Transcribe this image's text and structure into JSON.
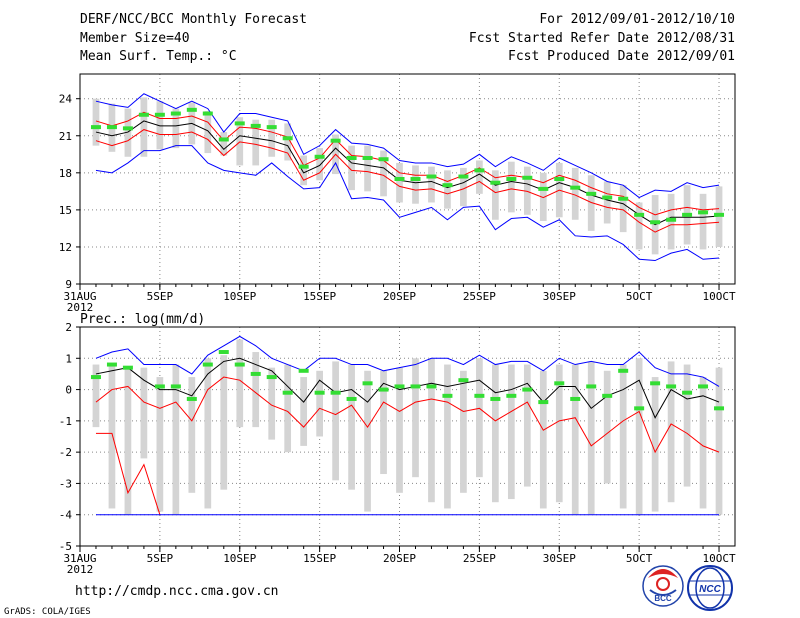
{
  "header": {
    "title": "DERF/NCC/BCC Monthly Forecast",
    "member_size": "Member Size=40",
    "var_temp": "Mean Surf. Temp.: °C",
    "for_range": "For 2012/09/01-2012/10/10",
    "fcst_started": "Fcst Started Refer Date 2012/08/31",
    "fcst_produced": "Fcst Produced Date 2012/09/01"
  },
  "footer": {
    "url": "http://cmdp.ncc.cma.gov.cn",
    "grads": "GrADS: COLA/IGES",
    "logo_bcc": "BCC",
    "logo_ncc": "NCC"
  },
  "colors": {
    "bar": "#d4d4d4",
    "mean": "#000000",
    "upper": "#ff0000",
    "lower_red": "#ff0000",
    "envelope": "#0000ff",
    "obs": "#33dd33",
    "grid": "#888888"
  },
  "chart_data": [
    {
      "type": "line",
      "id": "temperature",
      "title": "Mean Surf. Temp.: °C",
      "ylim": [
        9,
        26
      ],
      "yticks": [
        9,
        12,
        15,
        18,
        21,
        24
      ],
      "x_tick_labels": [
        "31AUG",
        "5SEP",
        "10SEP",
        "15SEP",
        "20SEP",
        "25SEP",
        "30SEP",
        "5OCT",
        "10OCT"
      ],
      "x_year_label": "2012",
      "x_tick_days": [
        0,
        5,
        10,
        15,
        20,
        25,
        30,
        35,
        40
      ],
      "days": [
        1,
        2,
        3,
        4,
        5,
        6,
        7,
        8,
        9,
        10,
        11,
        12,
        13,
        14,
        15,
        16,
        17,
        18,
        19,
        20,
        21,
        22,
        23,
        24,
        25,
        26,
        27,
        28,
        29,
        30,
        31,
        32,
        33,
        34,
        35,
        36,
        37,
        38,
        39,
        40
      ],
      "series": [
        {
          "name": "max",
          "values": [
            23.8,
            23.5,
            23.3,
            24.4,
            23.8,
            23.2,
            23.8,
            23.2,
            21.3,
            22.8,
            22.8,
            22.5,
            22.2,
            19.5,
            20.2,
            21.5,
            20.4,
            20.3,
            20.0,
            19.0,
            18.8,
            18.8,
            18.5,
            18.7,
            19.5,
            18.5,
            19.3,
            18.8,
            18.2,
            19.2,
            18.6,
            18.0,
            17.3,
            17.0,
            16.0,
            16.6,
            16.5,
            17.2,
            16.8,
            17.0
          ]
        },
        {
          "name": "upper",
          "values": [
            22.2,
            21.8,
            22.2,
            22.9,
            22.4,
            22.4,
            22.6,
            22.1,
            20.6,
            21.7,
            21.6,
            21.3,
            20.9,
            18.6,
            19.2,
            20.7,
            19.4,
            19.3,
            19.0,
            18.0,
            17.8,
            17.8,
            17.3,
            17.8,
            18.4,
            17.6,
            17.8,
            17.6,
            17.2,
            17.8,
            17.4,
            16.8,
            16.3,
            16.1,
            15.2,
            14.6,
            15.0,
            15.2,
            15.0,
            15.1
          ]
        },
        {
          "name": "mean",
          "values": [
            21.3,
            21.0,
            21.3,
            22.2,
            21.8,
            21.8,
            22.0,
            21.4,
            19.9,
            21.0,
            20.8,
            20.6,
            20.2,
            18.0,
            18.6,
            20.0,
            18.8,
            18.6,
            18.4,
            17.4,
            17.2,
            17.3,
            16.8,
            17.2,
            17.9,
            17.0,
            17.3,
            17.1,
            16.6,
            17.2,
            16.8,
            16.2,
            15.8,
            15.5,
            14.6,
            13.8,
            14.4,
            14.4,
            14.4,
            14.5
          ]
        },
        {
          "name": "lower",
          "values": [
            20.6,
            20.2,
            20.6,
            21.5,
            21.1,
            21.1,
            21.3,
            20.7,
            19.4,
            20.5,
            20.3,
            20.0,
            19.6,
            17.4,
            18.0,
            19.5,
            18.2,
            18.1,
            17.8,
            16.9,
            16.6,
            16.7,
            16.3,
            16.7,
            17.3,
            16.4,
            16.7,
            16.5,
            16.0,
            16.6,
            16.2,
            15.6,
            15.2,
            15.0,
            14.0,
            13.2,
            13.8,
            13.8,
            13.9,
            14.0
          ]
        },
        {
          "name": "min",
          "values": [
            18.2,
            18.0,
            18.8,
            19.8,
            19.8,
            20.2,
            20.2,
            18.8,
            18.2,
            18.0,
            17.8,
            18.8,
            17.7,
            16.7,
            16.8,
            18.8,
            15.9,
            16.0,
            15.8,
            14.4,
            14.8,
            15.2,
            14.2,
            15.2,
            15.3,
            13.4,
            14.3,
            14.4,
            13.6,
            14.2,
            12.9,
            12.8,
            12.9,
            12.2,
            11.0,
            10.9,
            11.5,
            11.8,
            11.0,
            11.1
          ]
        }
      ],
      "bars": {
        "name": "ensemble spread",
        "low": [
          20.2,
          19.7,
          19.3,
          19.3,
          19.9,
          20.0,
          20.3,
          19.6,
          19.4,
          18.6,
          18.6,
          19.3,
          19.0,
          17.0,
          17.4,
          17.9,
          16.6,
          16.5,
          16.1,
          15.6,
          15.5,
          15.6,
          15.1,
          15.3,
          16.3,
          14.2,
          14.8,
          14.6,
          14.1,
          14.4,
          14.2,
          13.3,
          13.9,
          13.2,
          11.8,
          11.4,
          11.8,
          12.2,
          11.8,
          12.0
        ],
        "high": [
          24.0,
          23.6,
          23.2,
          24.1,
          23.8,
          23.2,
          23.7,
          23.0,
          21.3,
          22.5,
          22.3,
          22.3,
          22.0,
          19.4,
          20.0,
          21.1,
          20.2,
          20.2,
          19.8,
          18.8,
          18.6,
          18.5,
          18.2,
          18.4,
          19.0,
          18.2,
          18.9,
          18.5,
          18.0,
          18.8,
          18.4,
          17.8,
          17.3,
          17.0,
          15.6,
          16.2,
          16.3,
          17.0,
          16.3,
          16.9
        ]
      },
      "obs": {
        "name": "observation",
        "values": [
          21.7,
          21.7,
          21.6,
          22.7,
          22.7,
          22.8,
          23.1,
          22.8,
          20.7,
          22.0,
          21.8,
          21.7,
          20.8,
          18.5,
          19.3,
          20.6,
          19.2,
          19.2,
          19.1,
          17.5,
          17.5,
          17.7,
          17.0,
          17.7,
          18.2,
          17.2,
          17.5,
          17.6,
          16.7,
          17.5,
          16.8,
          16.3,
          16.0,
          15.9,
          14.6,
          14.0,
          14.2,
          14.6,
          14.8,
          14.6
        ]
      }
    },
    {
      "type": "line",
      "id": "precipitation",
      "title": "Prec.: log(mm/d)",
      "ylim": [
        -5,
        2
      ],
      "yticks": [
        -5,
        -4,
        -3,
        -2,
        -1,
        0,
        1,
        2
      ],
      "x_tick_labels": [
        "31AUG",
        "5SEP",
        "10SEP",
        "15SEP",
        "20SEP",
        "25SEP",
        "30SEP",
        "5OCT",
        "10OCT"
      ],
      "x_year_label": "2012",
      "x_tick_days": [
        0,
        5,
        10,
        15,
        20,
        25,
        30,
        35,
        40
      ],
      "days": [
        1,
        2,
        3,
        4,
        5,
        6,
        7,
        8,
        9,
        10,
        11,
        12,
        13,
        14,
        15,
        16,
        17,
        18,
        19,
        20,
        21,
        22,
        23,
        24,
        25,
        26,
        27,
        28,
        29,
        30,
        31,
        32,
        33,
        34,
        35,
        36,
        37,
        38,
        39,
        40
      ],
      "series": [
        {
          "name": "max",
          "values": [
            1.0,
            1.2,
            1.3,
            0.8,
            0.8,
            0.8,
            0.5,
            1.1,
            1.4,
            1.7,
            1.4,
            1.0,
            0.8,
            0.6,
            1.0,
            1.0,
            0.8,
            0.8,
            0.6,
            0.7,
            0.8,
            1.0,
            1.0,
            0.8,
            1.1,
            0.8,
            0.9,
            0.9,
            0.6,
            1.0,
            0.8,
            0.9,
            0.8,
            0.8,
            1.2,
            0.7,
            0.5,
            0.5,
            0.4,
            0.1
          ]
        },
        {
          "name": "mean",
          "values": [
            0.5,
            0.6,
            0.7,
            0.3,
            0.0,
            0.0,
            -0.2,
            0.5,
            0.9,
            1.0,
            0.8,
            0.6,
            0.1,
            -0.4,
            0.3,
            -0.1,
            0.0,
            -0.4,
            0.2,
            0.0,
            0.1,
            0.2,
            0.1,
            0.2,
            0.3,
            -0.1,
            0.0,
            0.2,
            -0.4,
            0.1,
            0.1,
            -0.6,
            -0.2,
            0.0,
            0.3,
            -0.9,
            0.0,
            -0.3,
            -0.2,
            -0.4
          ]
        },
        {
          "name": "upper",
          "values": [
            -0.4,
            0.0,
            0.1,
            -0.4,
            -0.6,
            -0.4,
            -1.0,
            0.0,
            0.4,
            0.3,
            -0.1,
            -0.5,
            -0.7,
            -1.2,
            -0.6,
            -0.8,
            -0.5,
            -1.2,
            -0.4,
            -0.7,
            -0.4,
            -0.3,
            -0.4,
            -0.7,
            -0.6,
            -1.0,
            -0.7,
            -0.4,
            -1.3,
            -1.0,
            -0.9,
            -1.8,
            -1.4,
            -1.0,
            -0.7,
            -2.0,
            -1.1,
            -1.4,
            -1.8,
            -2.0
          ]
        },
        {
          "name": "lower_red",
          "values": [
            -1.4,
            -1.4,
            -3.3,
            -2.4,
            -4.0
          ]
        },
        {
          "name": "min",
          "values": [
            -4,
            -4,
            -4,
            -4,
            -4,
            -4,
            -4,
            -4,
            -4,
            -4,
            -4,
            -4,
            -4,
            -4,
            -4,
            -4,
            -4,
            -4,
            -4,
            -4,
            -4,
            -4,
            -4,
            -4,
            -4,
            -4,
            -4,
            -4,
            -4,
            -4,
            -4,
            -4,
            -4,
            -4,
            -4,
            -4,
            -4,
            -4,
            -4,
            -4
          ]
        }
      ],
      "bars": {
        "name": "ensemble spread",
        "low": [
          -1.2,
          -3.8,
          -4.0,
          -2.2,
          -3.9,
          -4.0,
          -3.3,
          -3.8,
          -3.2,
          -1.2,
          -1.2,
          -1.6,
          -2.0,
          -1.8,
          -1.5,
          -2.9,
          -3.2,
          -3.9,
          -2.7,
          -3.3,
          -2.8,
          -3.6,
          -3.8,
          -3.3,
          -2.8,
          -3.6,
          -3.5,
          -3.1,
          -3.8,
          -3.6,
          -4.0,
          -4.0,
          -3.0,
          -3.8,
          -4.0,
          -3.9,
          -3.6,
          -3.1,
          -3.8,
          -4.0
        ],
        "high": [
          0.8,
          0.8,
          0.7,
          0.7,
          0.4,
          0.8,
          0.4,
          1.0,
          1.1,
          1.6,
          1.2,
          0.7,
          0.8,
          0.4,
          0.6,
          0.9,
          0.8,
          0.6,
          0.6,
          0.7,
          1.0,
          1.0,
          0.8,
          0.6,
          1.0,
          0.8,
          0.8,
          0.8,
          0.6,
          0.8,
          0.8,
          0.9,
          0.6,
          0.8,
          1.0,
          0.4,
          0.9,
          0.8,
          0.4,
          0.7
        ]
      },
      "obs": {
        "name": "observation",
        "values": [
          0.4,
          0.8,
          0.7,
          null,
          0.1,
          0.1,
          -0.3,
          0.8,
          1.2,
          0.8,
          0.5,
          0.4,
          -0.1,
          0.6,
          -0.1,
          -0.1,
          -0.3,
          0.2,
          0.0,
          0.1,
          0.1,
          0.1,
          -0.2,
          0.3,
          -0.2,
          -0.3,
          -0.2,
          0.0,
          -0.4,
          0.2,
          -0.3,
          0.1,
          -0.2,
          0.6,
          -0.6,
          0.2,
          0.1,
          -0.1,
          0.1,
          -0.6
        ]
      }
    }
  ]
}
